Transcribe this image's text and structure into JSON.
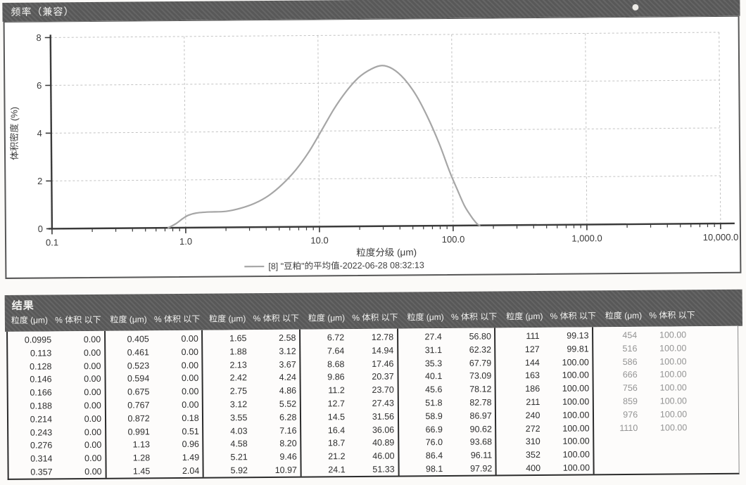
{
  "chart_panel": {
    "title": "频率（兼容）",
    "ylabel": "体积密度 (%)",
    "xlabel": "粒度分级 (μm)",
    "legend": "[8] \"豆粕\"的平均值-2022-06-28 08:32:13",
    "y_ticks": [
      "8",
      "6",
      "4",
      "2",
      "0"
    ],
    "x_ticks": [
      "0.1",
      "1.0",
      "10.0",
      "100.0",
      "1,000.0",
      "10,000.0"
    ],
    "banner_color": "#5d5d5d",
    "curve_color": "#a6a6a6"
  },
  "chart_data": {
    "type": "line",
    "title": "频率（兼容）",
    "xlabel": "粒度分级 (μm)",
    "ylabel": "体积密度 (%)",
    "x_scale": "log",
    "xlim": [
      0.1,
      10000
    ],
    "ylim": [
      0,
      8
    ],
    "grid": true,
    "legend_position": "bottom-center",
    "series": [
      {
        "name": "[8] \"豆粕\"的平均值-2022-06-28 08:32:13",
        "color": "#a6a6a6",
        "x": [
          0.74,
          0.85,
          0.95,
          1.05,
          1.2,
          1.5,
          2.0,
          2.6,
          3.3,
          4.2,
          5.3,
          6.7,
          8.4,
          10.5,
          13,
          16,
          20,
          25,
          30,
          36,
          44,
          54,
          66,
          80,
          95,
          108,
          122,
          135,
          145,
          152,
          158
        ],
        "y": [
          0,
          0.18,
          0.38,
          0.52,
          0.61,
          0.65,
          0.67,
          0.8,
          1.0,
          1.32,
          1.78,
          2.38,
          3.12,
          4.02,
          4.9,
          5.62,
          6.22,
          6.58,
          6.72,
          6.58,
          6.15,
          5.45,
          4.5,
          3.4,
          2.25,
          1.5,
          0.82,
          0.42,
          0.18,
          0.05,
          0
        ]
      }
    ]
  },
  "results": {
    "title": "结果",
    "col_headers": {
      "size": "粒度 (μm)",
      "pct": "% 体积 以下"
    },
    "groups": [
      {
        "rows": [
          [
            "0.0995",
            "0.00"
          ],
          [
            "0.113",
            "0.00"
          ],
          [
            "0.128",
            "0.00"
          ],
          [
            "0.146",
            "0.00"
          ],
          [
            "0.166",
            "0.00"
          ],
          [
            "0.188",
            "0.00"
          ],
          [
            "0.214",
            "0.00"
          ],
          [
            "0.243",
            "0.00"
          ],
          [
            "0.276",
            "0.00"
          ],
          [
            "0.314",
            "0.00"
          ],
          [
            "0.357",
            "0.00"
          ]
        ]
      },
      {
        "rows": [
          [
            "0.405",
            "0.00"
          ],
          [
            "0.461",
            "0.00"
          ],
          [
            "0.523",
            "0.00"
          ],
          [
            "0.594",
            "0.00"
          ],
          [
            "0.675",
            "0.00"
          ],
          [
            "0.767",
            "0.00"
          ],
          [
            "0.872",
            "0.18"
          ],
          [
            "0.991",
            "0.51"
          ],
          [
            "1.13",
            "0.96"
          ],
          [
            "1.28",
            "1.49"
          ],
          [
            "1.45",
            "2.04"
          ]
        ]
      },
      {
        "rows": [
          [
            "1.65",
            "2.58"
          ],
          [
            "1.88",
            "3.12"
          ],
          [
            "2.13",
            "3.67"
          ],
          [
            "2.42",
            "4.24"
          ],
          [
            "2.75",
            "4.86"
          ],
          [
            "3.12",
            "5.52"
          ],
          [
            "3.55",
            "6.28"
          ],
          [
            "4.03",
            "7.16"
          ],
          [
            "4.58",
            "8.20"
          ],
          [
            "5.21",
            "9.46"
          ],
          [
            "5.92",
            "10.97"
          ]
        ]
      },
      {
        "rows": [
          [
            "6.72",
            "12.78"
          ],
          [
            "7.64",
            "14.94"
          ],
          [
            "8.68",
            "17.46"
          ],
          [
            "9.86",
            "20.37"
          ],
          [
            "11.2",
            "23.70"
          ],
          [
            "12.7",
            "27.43"
          ],
          [
            "14.5",
            "31.56"
          ],
          [
            "16.4",
            "36.06"
          ],
          [
            "18.7",
            "40.89"
          ],
          [
            "21.2",
            "46.00"
          ],
          [
            "24.1",
            "51.33"
          ]
        ]
      },
      {
        "rows": [
          [
            "27.4",
            "56.80"
          ],
          [
            "31.1",
            "62.32"
          ],
          [
            "35.3",
            "67.79"
          ],
          [
            "40.1",
            "73.09"
          ],
          [
            "45.6",
            "78.12"
          ],
          [
            "51.8",
            "82.78"
          ],
          [
            "58.9",
            "86.97"
          ],
          [
            "66.9",
            "90.62"
          ],
          [
            "76.0",
            "93.68"
          ],
          [
            "86.4",
            "96.11"
          ],
          [
            "98.1",
            "97.92"
          ]
        ]
      },
      {
        "rows": [
          [
            "111",
            "99.13"
          ],
          [
            "127",
            "99.81"
          ],
          [
            "144",
            "100.00"
          ],
          [
            "163",
            "100.00"
          ],
          [
            "186",
            "100.00"
          ],
          [
            "211",
            "100.00"
          ],
          [
            "240",
            "100.00"
          ],
          [
            "272",
            "100.00"
          ],
          [
            "310",
            "100.00"
          ],
          [
            "352",
            "100.00"
          ],
          [
            "400",
            "100.00"
          ]
        ]
      },
      {
        "rows": [
          [
            "454",
            "100.00"
          ],
          [
            "516",
            "100.00"
          ],
          [
            "586",
            "100.00"
          ],
          [
            "666",
            "100.00"
          ],
          [
            "756",
            "100.00"
          ],
          [
            "859",
            "100.00"
          ],
          [
            "976",
            "100.00"
          ],
          [
            "1110",
            "100.00"
          ]
        ]
      }
    ]
  }
}
